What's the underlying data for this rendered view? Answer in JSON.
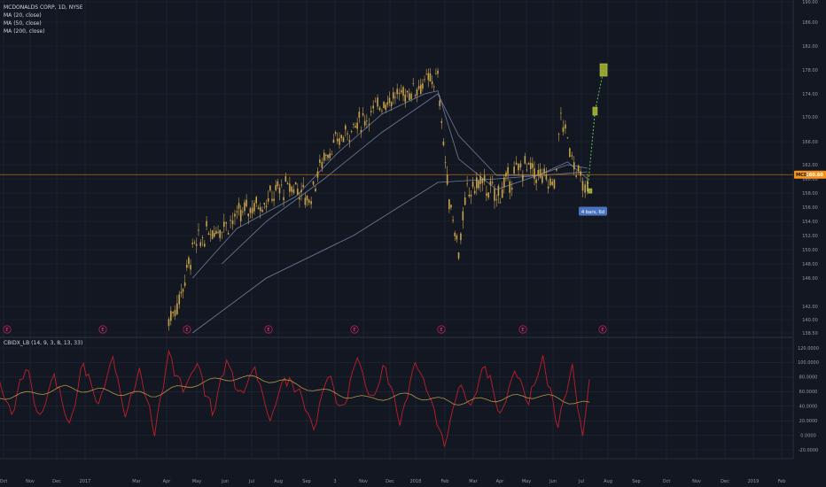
{
  "header": {
    "symbol_line": "MCDONALDS CORP, 1D, NYSE",
    "ma_lines": [
      "MA (20, close)",
      "MA (50, close)",
      "MA (200, close)"
    ],
    "indicator_title": "CBIDX_LB (14, 9, 3, 8, 13, 33)"
  },
  "price_tag": {
    "symbol": "MCD",
    "value": "160.60"
  },
  "annotation": {
    "label": "4 bars, 6d"
  },
  "colors": {
    "background": "#131722",
    "grid": "#22293a",
    "candles": "#c8a24a",
    "ma": "#7f8fb0",
    "price_line": "#f7931a",
    "indicator_fast": "#d0202a",
    "indicator_slow": "#c8a24a",
    "projection": "#5ac85a",
    "projection_box": "#a8b832",
    "event_marker": "#c2185b",
    "label_bg": "#4a74c0"
  },
  "chart_data": [
    {
      "type": "line",
      "title": "MCDONALDS CORP, 1D, NYSE",
      "y_axis_ticks": [
        138.5,
        140.0,
        142.0,
        146.0,
        148.0,
        150.0,
        152.0,
        154.0,
        156.0,
        158.0,
        160.0,
        162.0,
        166.0,
        170.0,
        174.0,
        178.0,
        182.0,
        186.0,
        190.0
      ],
      "ylim": [
        138.5,
        190.0
      ],
      "x_axis_labels": [
        "Oct",
        "Nov",
        "Dec",
        "2017",
        "Mar",
        "Apr",
        "May",
        "Jun",
        "Jul",
        "Aug",
        "Sep",
        "3",
        "Nov",
        "Dec",
        "2018",
        "Feb",
        "Mar",
        "Apr",
        "May",
        "Jun",
        "Jul",
        "Aug",
        "Sep",
        "Oct",
        "Nov",
        "Dec",
        "2019",
        "Feb"
      ],
      "series": [
        {
          "name": "MCD",
          "x": [
            "2017-04-20",
            "2017-05-01",
            "2017-05-15",
            "2017-06-01",
            "2017-06-15",
            "2017-07-01",
            "2017-07-15",
            "2017-08-01",
            "2017-08-15",
            "2017-09-01",
            "2017-09-15",
            "2017-10-01",
            "2017-10-15",
            "2017-11-01",
            "2017-11-15",
            "2017-12-01",
            "2017-12-15",
            "2018-01-01",
            "2018-01-15",
            "2018-01-29",
            "2018-02-08",
            "2018-02-20",
            "2018-03-01",
            "2018-03-15",
            "2018-04-01",
            "2018-04-15",
            "2018-05-01",
            "2018-05-15",
            "2018-06-01",
            "2018-06-08",
            "2018-06-15",
            "2018-07-01",
            "2018-07-06"
          ],
          "close": [
            140.0,
            143.0,
            150.0,
            152.5,
            153.5,
            154.5,
            156.0,
            157.0,
            158.5,
            159.0,
            157.0,
            163.5,
            166.0,
            168.5,
            170.0,
            172.5,
            173.5,
            174.5,
            176.0,
            176.5,
            159.0,
            150.0,
            158.0,
            159.5,
            157.5,
            160.0,
            162.0,
            160.5,
            159.0,
            170.0,
            166.0,
            158.5,
            158.3
          ]
        },
        {
          "name": "MA (20, close)",
          "x": [
            "2017-05-15",
            "2017-07-01",
            "2017-09-01",
            "2017-10-15",
            "2017-12-01",
            "2018-01-15",
            "2018-01-29",
            "2018-02-20",
            "2018-04-01",
            "2018-05-15",
            "2018-06-15",
            "2018-07-06"
          ],
          "values": [
            146.0,
            153.0,
            157.5,
            164.0,
            170.5,
            174.0,
            174.5,
            163.0,
            158.5,
            160.5,
            162.5,
            160.0
          ]
        },
        {
          "name": "MA (50, close)",
          "x": [
            "2017-06-15",
            "2017-08-01",
            "2017-10-01",
            "2017-12-01",
            "2018-01-29",
            "2018-02-20",
            "2018-04-01",
            "2018-05-15",
            "2018-06-15",
            "2018-07-06"
          ],
          "values": [
            148.0,
            154.0,
            160.0,
            167.5,
            174.0,
            167.0,
            160.5,
            160.5,
            162.0,
            161.5
          ]
        },
        {
          "name": "MA (200, close)",
          "x": [
            "2017-05-15",
            "2017-08-01",
            "2017-11-01",
            "2018-01-29",
            "2018-04-01",
            "2018-07-06"
          ],
          "values": [
            138.5,
            146.0,
            152.0,
            159.5,
            160.0,
            161.0
          ]
        },
        {
          "name": "Projection",
          "x": [
            "2018-07-06",
            "2018-07-14",
            "2018-07-23"
          ],
          "values": [
            158.3,
            171.0,
            178.0
          ]
        }
      ],
      "last_price": 160.6
    },
    {
      "type": "line",
      "title": "CBIDX_LB (14, 9, 3, 8, 13, 33)",
      "y_axis_ticks": [
        -20.0,
        0.0,
        20.0,
        40.0,
        60.0,
        80.0,
        100.0,
        120.0
      ],
      "y_axis_labels": [
        "-20.0000",
        "0.0000",
        "20.0000",
        "40.0000",
        "60.0000",
        "80.0000",
        "100.0000",
        "120.0000"
      ],
      "ylim": [
        -28.0,
        128.0
      ],
      "series": [
        {
          "name": "CBIDX fast",
          "x": [
            "2016-10-01",
            "2016-10-20",
            "2016-11-05",
            "2016-11-20",
            "2016-12-05",
            "2016-12-20",
            "2017-01-05",
            "2017-01-20",
            "2017-02-05",
            "2017-02-20",
            "2017-03-05",
            "2017-03-20",
            "2017-04-05",
            "2017-04-20",
            "2017-05-05",
            "2017-05-20",
            "2017-06-05",
            "2017-06-20",
            "2017-07-05",
            "2017-07-20",
            "2017-08-05",
            "2017-08-20",
            "2017-09-05",
            "2017-09-20",
            "2017-10-05",
            "2017-10-20",
            "2017-11-05",
            "2017-11-20",
            "2017-12-05",
            "2017-12-20",
            "2018-01-05",
            "2018-01-20",
            "2018-02-05",
            "2018-02-20",
            "2018-03-05",
            "2018-03-20",
            "2018-04-05",
            "2018-04-20",
            "2018-05-05",
            "2018-05-20",
            "2018-06-05",
            "2018-06-20",
            "2018-07-01",
            "2018-07-08"
          ],
          "values": [
            55,
            80,
            30,
            95,
            20,
            85,
            10,
            100,
            40,
            110,
            25,
            90,
            5,
            115,
            60,
            100,
            30,
            105,
            50,
            95,
            20,
            80,
            60,
            10,
            85,
            30,
            110,
            45,
            95,
            15,
            100,
            55,
            -15,
            70,
            40,
            100,
            25,
            90,
            45,
            105,
            15,
            95,
            -5,
            80
          ]
        },
        {
          "name": "CBIDX slow",
          "x": [
            "2016-10-01",
            "2016-11-15",
            "2017-01-01",
            "2017-02-15",
            "2017-04-01",
            "2017-05-15",
            "2017-07-01",
            "2017-08-15",
            "2017-10-01",
            "2017-11-15",
            "2018-01-01",
            "2018-02-15",
            "2018-04-01",
            "2018-05-15",
            "2018-07-08"
          ],
          "values": [
            50,
            55,
            65,
            60,
            55,
            70,
            80,
            75,
            60,
            50,
            55,
            45,
            50,
            55,
            42
          ]
        }
      ]
    }
  ]
}
